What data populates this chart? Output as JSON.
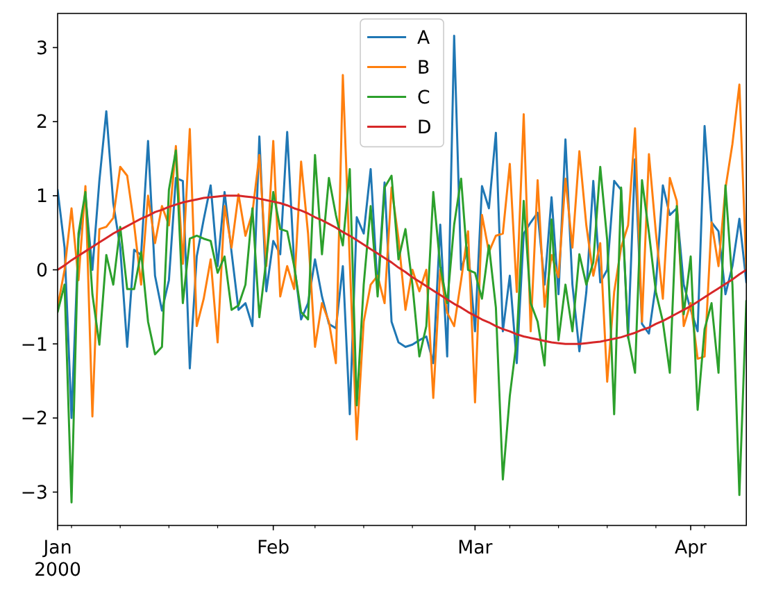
{
  "chart_data": {
    "type": "line",
    "x": [
      "2000-01-01",
      "2000-01-02",
      "2000-01-03",
      "2000-01-04",
      "2000-01-05",
      "2000-01-06",
      "2000-01-07",
      "2000-01-08",
      "2000-01-09",
      "2000-01-10",
      "2000-01-11",
      "2000-01-12",
      "2000-01-13",
      "2000-01-14",
      "2000-01-15",
      "2000-01-16",
      "2000-01-17",
      "2000-01-18",
      "2000-01-19",
      "2000-01-20",
      "2000-01-21",
      "2000-01-22",
      "2000-01-23",
      "2000-01-24",
      "2000-01-25",
      "2000-01-26",
      "2000-01-27",
      "2000-01-28",
      "2000-01-29",
      "2000-01-30",
      "2000-01-31",
      "2000-02-01",
      "2000-02-02",
      "2000-02-03",
      "2000-02-04",
      "2000-02-05",
      "2000-02-06",
      "2000-02-07",
      "2000-02-08",
      "2000-02-09",
      "2000-02-10",
      "2000-02-11",
      "2000-02-12",
      "2000-02-13",
      "2000-02-14",
      "2000-02-15",
      "2000-02-16",
      "2000-02-17",
      "2000-02-18",
      "2000-02-19",
      "2000-02-20",
      "2000-02-21",
      "2000-02-22",
      "2000-02-23",
      "2000-02-24",
      "2000-02-25",
      "2000-02-26",
      "2000-02-27",
      "2000-02-28",
      "2000-02-29",
      "2000-03-01",
      "2000-03-02",
      "2000-03-03",
      "2000-03-04",
      "2000-03-05",
      "2000-03-06",
      "2000-03-07",
      "2000-03-08",
      "2000-03-09",
      "2000-03-10",
      "2000-03-11",
      "2000-03-12",
      "2000-03-13",
      "2000-03-14",
      "2000-03-15",
      "2000-03-16",
      "2000-03-17",
      "2000-03-18",
      "2000-03-19",
      "2000-03-20",
      "2000-03-21",
      "2000-03-22",
      "2000-03-23",
      "2000-03-24",
      "2000-03-25",
      "2000-03-26",
      "2000-03-27",
      "2000-03-28",
      "2000-03-29",
      "2000-03-30",
      "2000-03-31",
      "2000-04-01",
      "2000-04-02",
      "2000-04-03",
      "2000-04-04",
      "2000-04-05",
      "2000-04-06",
      "2000-04-07",
      "2000-04-08",
      "2000-04-09"
    ],
    "series": [
      {
        "name": "A",
        "color": "#1f77b4",
        "values": [
          1.08,
          0.3,
          -2.0,
          0.42,
          1.0,
          0.0,
          1.2,
          2.14,
          0.9,
          0.3,
          -1.04,
          0.27,
          0.2,
          1.74,
          -0.08,
          -0.55,
          -0.14,
          1.24,
          1.2,
          -1.33,
          0.18,
          0.68,
          1.14,
          0.05,
          1.05,
          0.24,
          -0.54,
          -0.45,
          -0.76,
          1.8,
          -0.29,
          0.39,
          0.21,
          1.86,
          0.08,
          -0.67,
          -0.45,
          0.14,
          -0.36,
          -0.73,
          -0.79,
          0.05,
          -1.95,
          0.71,
          0.49,
          1.36,
          -0.26,
          1.18,
          -0.7,
          -0.98,
          -1.04,
          -1.01,
          -0.95,
          -0.9,
          -1.26,
          0.61,
          -1.17,
          3.16,
          0.0,
          0.3,
          -0.83,
          1.13,
          0.83,
          1.85,
          -0.83,
          -0.08,
          -1.26,
          0.49,
          0.64,
          0.77,
          -0.2,
          0.98,
          -0.33,
          1.76,
          -0.2,
          -1.1,
          -0.3,
          1.2,
          -0.17,
          0.0,
          1.2,
          1.08,
          -0.92,
          1.49,
          -0.73,
          -0.86,
          -0.2,
          1.14,
          0.74,
          0.83,
          -0.2,
          -0.54,
          -0.83,
          1.94,
          0.64,
          0.52,
          -0.33,
          0.05,
          0.69,
          -0.17
        ]
      },
      {
        "name": "B",
        "color": "#ff7f0e",
        "values": [
          -0.5,
          0.0,
          0.83,
          -0.14,
          1.13,
          -1.98,
          0.55,
          0.58,
          0.7,
          1.39,
          1.27,
          0.61,
          -0.2,
          1.0,
          0.36,
          0.86,
          0.6,
          1.67,
          0.08,
          1.9,
          -0.76,
          -0.39,
          0.14,
          -0.98,
          0.86,
          0.3,
          1.02,
          0.46,
          0.77,
          1.55,
          0.05,
          1.74,
          -0.36,
          0.05,
          -0.26,
          1.46,
          0.49,
          -1.04,
          -0.45,
          -0.7,
          -1.26,
          2.63,
          0.1,
          -2.29,
          -0.7,
          -0.2,
          -0.08,
          -0.45,
          1.11,
          0.42,
          -0.54,
          0.0,
          -0.29,
          0.0,
          -1.73,
          0.0,
          -0.58,
          -0.76,
          -0.14,
          0.52,
          -1.79,
          0.74,
          0.24,
          0.46,
          0.49,
          1.43,
          -0.3,
          2.1,
          -0.83,
          1.21,
          -0.5,
          0.2,
          -0.1,
          1.23,
          0.3,
          1.6,
          0.6,
          -0.08,
          0.36,
          -1.51,
          -0.3,
          0.3,
          0.6,
          1.91,
          -0.7,
          1.56,
          0.5,
          -0.39,
          1.24,
          0.93,
          -0.76,
          -0.45,
          -1.2,
          -1.17,
          0.64,
          0.05,
          1.1,
          1.7,
          2.5,
          0.0
        ]
      },
      {
        "name": "C",
        "color": "#2ca02c",
        "values": [
          -0.57,
          -0.2,
          -3.14,
          0.49,
          1.05,
          -0.33,
          -1.01,
          0.2,
          -0.2,
          0.58,
          -0.26,
          -0.26,
          0.24,
          -0.7,
          -1.14,
          -1.04,
          1.08,
          1.61,
          -0.45,
          0.42,
          0.46,
          0.42,
          0.39,
          -0.04,
          0.18,
          -0.54,
          -0.48,
          -0.2,
          0.83,
          -0.64,
          0.14,
          1.05,
          0.55,
          0.52,
          0.05,
          -0.57,
          -0.67,
          1.55,
          0.21,
          1.24,
          0.74,
          0.33,
          1.36,
          -1.83,
          -0.2,
          0.86,
          -0.36,
          1.11,
          1.27,
          0.14,
          0.55,
          -0.2,
          -1.17,
          -0.76,
          1.05,
          0.05,
          -0.45,
          0.61,
          1.23,
          0.0,
          -0.04,
          -0.39,
          0.33,
          -0.51,
          -2.83,
          -1.7,
          -0.95,
          0.93,
          -0.45,
          -0.7,
          -1.29,
          0.68,
          -0.95,
          -0.2,
          -0.83,
          0.21,
          -0.2,
          0.1,
          1.39,
          0.4,
          -1.95,
          1.11,
          -0.9,
          -1.39,
          1.21,
          0.5,
          -0.3,
          -0.7,
          -1.39,
          0.86,
          -0.6,
          0.18,
          -1.89,
          -0.8,
          -0.45,
          -1.39,
          1.14,
          -0.2,
          -3.04,
          -0.42
        ]
      },
      {
        "name": "D",
        "color": "#d62728",
        "values": [
          0,
          0.06,
          0.13,
          0.19,
          0.25,
          0.31,
          0.37,
          0.43,
          0.49,
          0.54,
          0.59,
          0.64,
          0.69,
          0.73,
          0.78,
          0.81,
          0.85,
          0.88,
          0.91,
          0.93,
          0.95,
          0.97,
          0.98,
          0.99,
          1.0,
          1.0,
          1.0,
          0.99,
          0.98,
          0.96,
          0.94,
          0.92,
          0.9,
          0.87,
          0.83,
          0.8,
          0.76,
          0.71,
          0.67,
          0.62,
          0.57,
          0.51,
          0.46,
          0.4,
          0.34,
          0.28,
          0.22,
          0.16,
          0.1,
          0.03,
          -0.03,
          -0.1,
          -0.16,
          -0.22,
          -0.28,
          -0.34,
          -0.4,
          -0.46,
          -0.51,
          -0.57,
          -0.62,
          -0.67,
          -0.71,
          -0.76,
          -0.8,
          -0.83,
          -0.87,
          -0.9,
          -0.92,
          -0.94,
          -0.96,
          -0.98,
          -0.99,
          -1.0,
          -1.0,
          -1.0,
          -0.99,
          -0.98,
          -0.97,
          -0.95,
          -0.93,
          -0.91,
          -0.88,
          -0.85,
          -0.81,
          -0.78,
          -0.73,
          -0.69,
          -0.64,
          -0.59,
          -0.54,
          -0.49,
          -0.43,
          -0.37,
          -0.31,
          -0.25,
          -0.19,
          -0.13,
          -0.06,
          0
        ]
      }
    ],
    "xlim": [
      "2000-01-01",
      "2000-04-09"
    ],
    "xticks": [
      {
        "value": "2000-01-01",
        "label": "Jan\n2000"
      },
      {
        "value": "2000-01-03",
        "label": null
      },
      {
        "value": "2000-01-10",
        "label": null
      },
      {
        "value": "2000-01-17",
        "label": null
      },
      {
        "value": "2000-01-24",
        "label": null
      },
      {
        "value": "2000-02-01",
        "label": "Feb"
      },
      {
        "value": "2000-02-07",
        "label": null
      },
      {
        "value": "2000-02-14",
        "label": null
      },
      {
        "value": "2000-02-21",
        "label": null
      },
      {
        "value": "2000-03-01",
        "label": "Mar"
      },
      {
        "value": "2000-03-06",
        "label": null
      },
      {
        "value": "2000-03-13",
        "label": null
      },
      {
        "value": "2000-03-20",
        "label": null
      },
      {
        "value": "2000-03-27",
        "label": null
      },
      {
        "value": "2000-04-01",
        "label": "Apr"
      },
      {
        "value": "2000-04-03",
        "label": null
      }
    ],
    "ylim": [
      -3.45,
      3.46
    ],
    "yticks": [
      {
        "value": -3,
        "label": "−3"
      },
      {
        "value": -2,
        "label": "−2"
      },
      {
        "value": -1,
        "label": "−1"
      },
      0,
      1,
      2,
      3
    ],
    "legend": "top",
    "marker": "none",
    "line_style": "solid",
    "grid": false
  }
}
